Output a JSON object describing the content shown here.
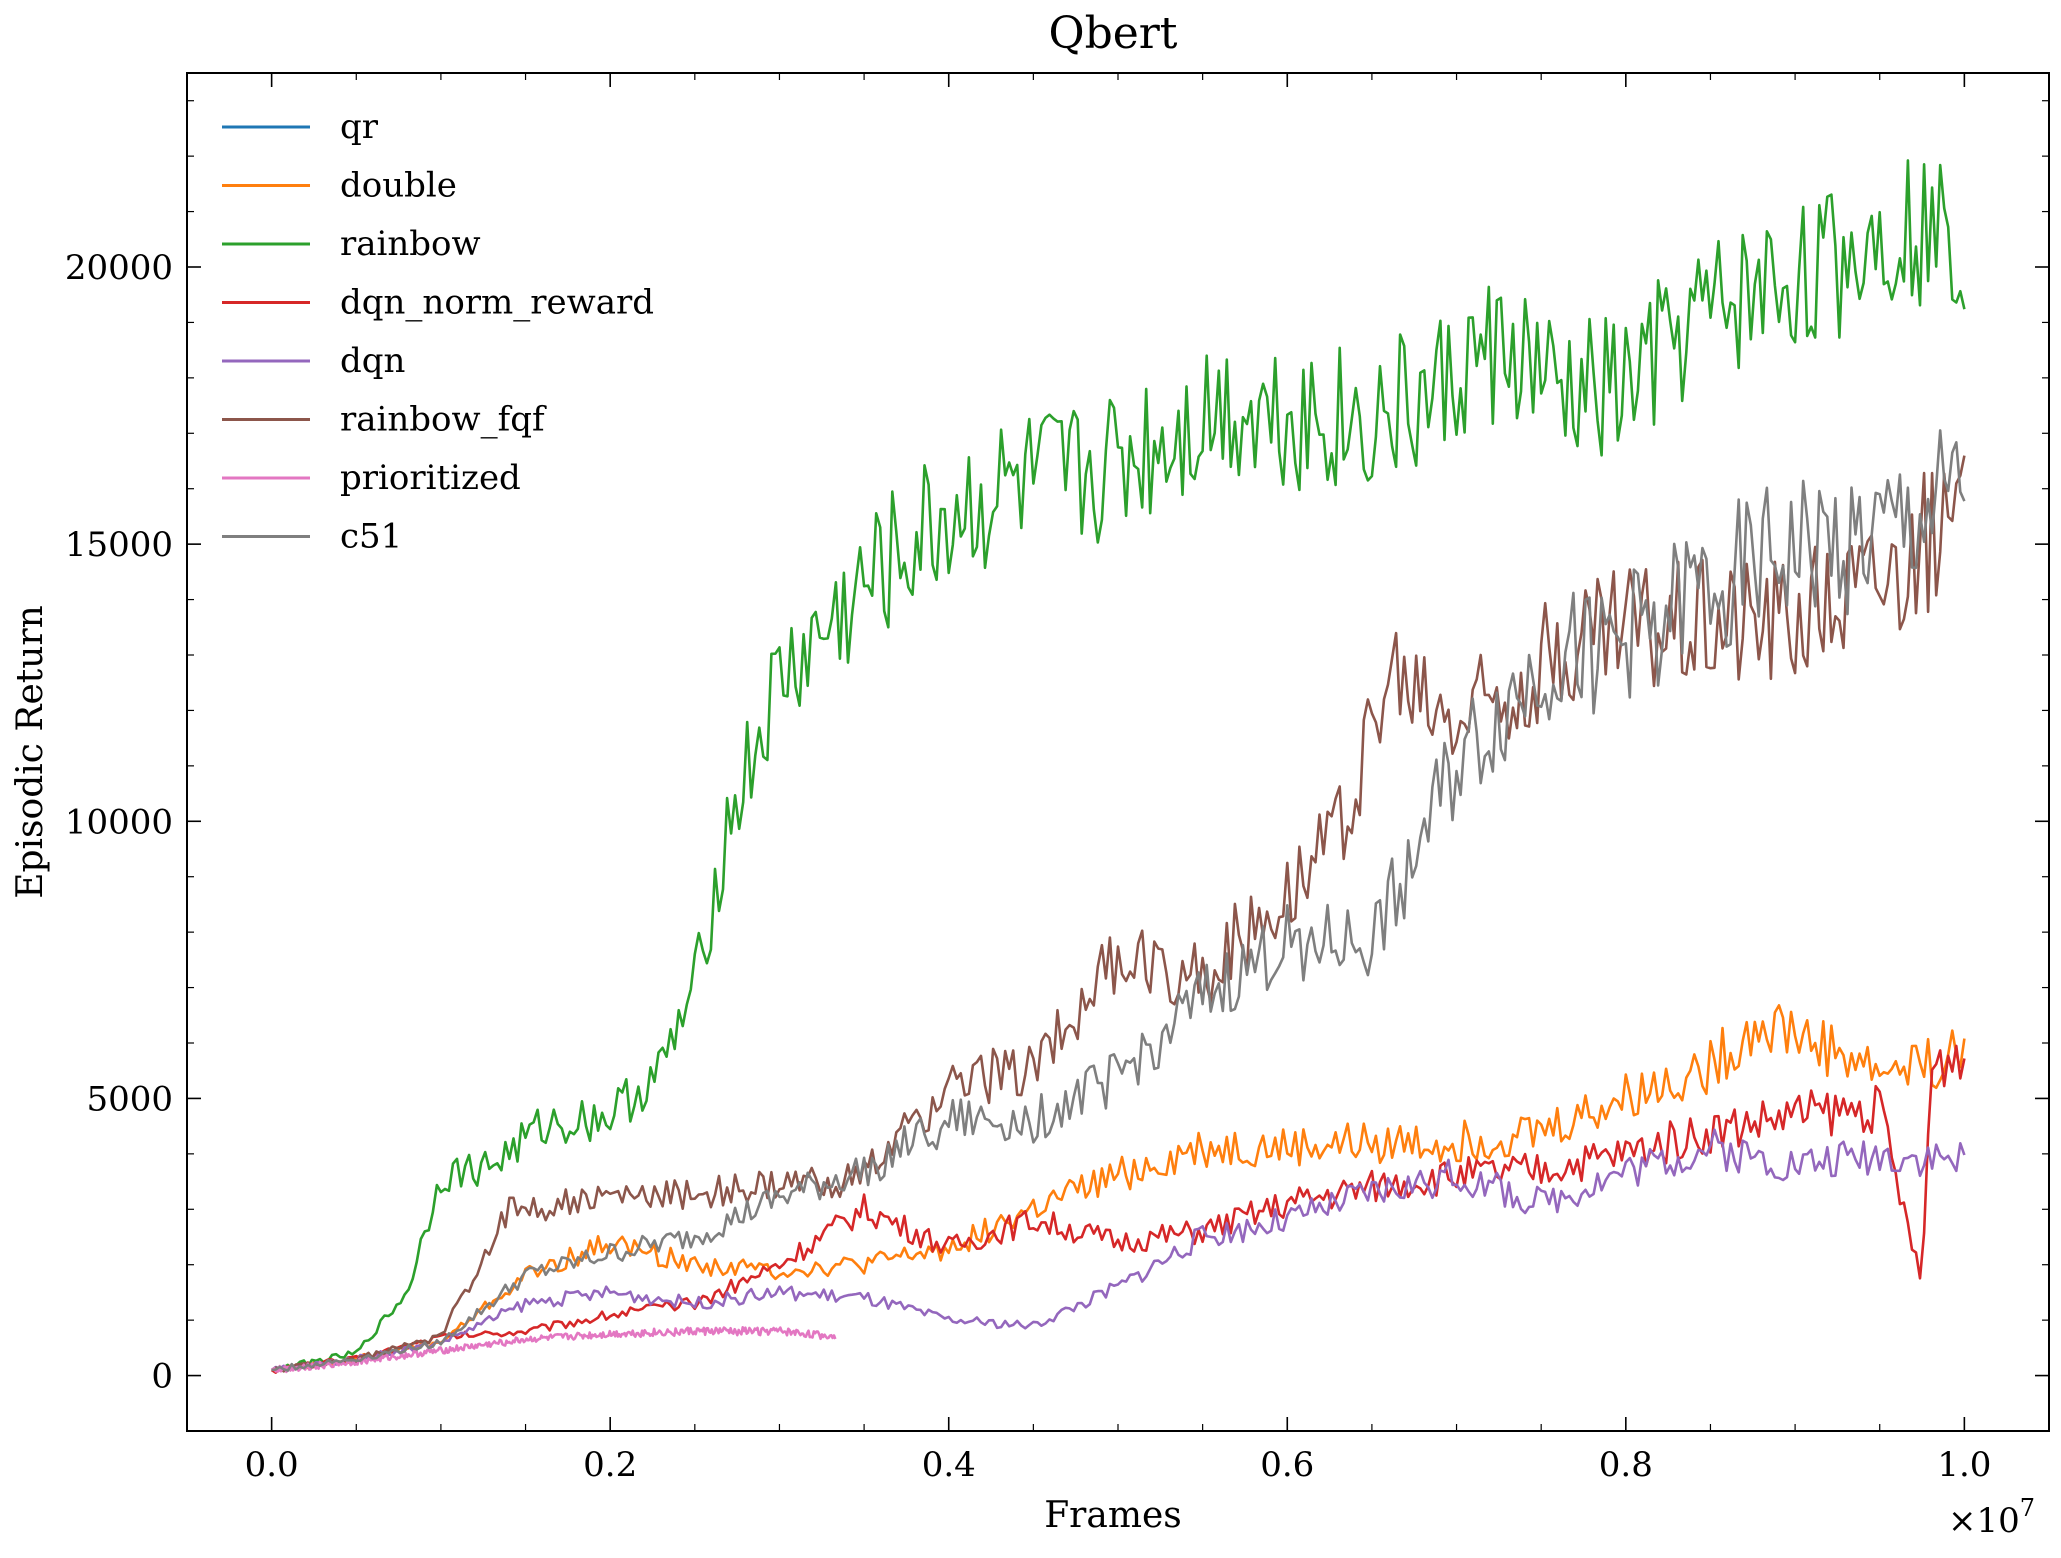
{
  "chart_data": {
    "type": "line",
    "title": "Qbert",
    "xlabel": "Frames",
    "ylabel": "Episodic Return",
    "x_scale_label": "×10",
    "x_scale_exp": "7",
    "xlim": [
      -0.05,
      1.05
    ],
    "ylim": [
      -1000,
      23500
    ],
    "xticks": [
      0.0,
      0.2,
      0.4,
      0.6,
      0.8,
      1.0
    ],
    "xtick_labels": [
      "0.0",
      "0.2",
      "0.4",
      "0.6",
      "0.8",
      "1.0"
    ],
    "yticks": [
      0,
      5000,
      10000,
      15000,
      20000
    ],
    "ytick_labels": [
      "0",
      "5000",
      "10000",
      "15000",
      "20000"
    ],
    "grid": false,
    "legend_placement": "top-left",
    "series": [
      {
        "name": "qr",
        "color": "#1f77b4",
        "x": [],
        "y": []
      },
      {
        "name": "double",
        "color": "#ff7f0e",
        "x": [
          0.0,
          0.05,
          0.1,
          0.15,
          0.2,
          0.25,
          0.3,
          0.35,
          0.4,
          0.45,
          0.5,
          0.55,
          0.6,
          0.65,
          0.7,
          0.75,
          0.8,
          0.85,
          0.88,
          0.9,
          0.95,
          1.0
        ],
        "y": [
          100,
          300,
          600,
          1800,
          2400,
          2000,
          1900,
          2000,
          2300,
          3000,
          3600,
          4100,
          4100,
          4200,
          4200,
          4400,
          5000,
          5600,
          6400,
          6200,
          5500,
          5800
        ]
      },
      {
        "name": "rainbow",
        "color": "#2ca02c",
        "x": [
          0.0,
          0.05,
          0.08,
          0.1,
          0.13,
          0.16,
          0.2,
          0.23,
          0.25,
          0.27,
          0.3,
          0.33,
          0.36,
          0.4,
          0.44,
          0.48,
          0.52,
          0.56,
          0.6,
          0.64,
          0.68,
          0.72,
          0.74,
          0.76,
          0.8,
          0.84,
          0.88,
          0.92,
          0.96,
          1.0
        ],
        "y": [
          100,
          400,
          1500,
          3600,
          3800,
          4500,
          4700,
          5500,
          7000,
          10000,
          12500,
          13500,
          14500,
          15500,
          16000,
          16200,
          16800,
          17500,
          17400,
          17200,
          17500,
          18500,
          18300,
          17600,
          17800,
          19000,
          19600,
          20000,
          20800,
          20500
        ]
      },
      {
        "name": "dqn_norm_reward",
        "color": "#d62728",
        "x": [
          0.0,
          0.05,
          0.1,
          0.15,
          0.2,
          0.25,
          0.3,
          0.35,
          0.4,
          0.45,
          0.5,
          0.55,
          0.6,
          0.65,
          0.7,
          0.75,
          0.8,
          0.85,
          0.9,
          0.95,
          0.975,
          0.98,
          1.0
        ],
        "y": [
          100,
          300,
          700,
          800,
          1100,
          1300,
          2000,
          3000,
          2300,
          2800,
          2400,
          2600,
          3100,
          3400,
          3600,
          3700,
          4000,
          4400,
          4700,
          4800,
          1600,
          5500,
          5900
        ]
      },
      {
        "name": "dqn",
        "color": "#9467bd",
        "x": [
          0.0,
          0.05,
          0.1,
          0.15,
          0.2,
          0.25,
          0.3,
          0.35,
          0.4,
          0.45,
          0.5,
          0.55,
          0.6,
          0.65,
          0.7,
          0.75,
          0.8,
          0.85,
          0.9,
          0.95,
          1.0
        ],
        "y": [
          100,
          300,
          600,
          1300,
          1500,
          1300,
          1500,
          1400,
          1000,
          900,
          1600,
          2500,
          2800,
          3300,
          3600,
          3100,
          3700,
          4100,
          3800,
          4000,
          3900
        ]
      },
      {
        "name": "rainbow_fqf",
        "color": "#8c564b",
        "x": [
          0.0,
          0.05,
          0.1,
          0.14,
          0.2,
          0.25,
          0.3,
          0.35,
          0.4,
          0.45,
          0.5,
          0.55,
          0.6,
          0.63,
          0.66,
          0.7,
          0.75,
          0.8,
          0.85,
          0.9,
          0.95,
          1.0
        ],
        "y": [
          100,
          300,
          700,
          3000,
          3200,
          3300,
          3400,
          3600,
          5200,
          5600,
          7500,
          7200,
          8800,
          9800,
          12500,
          11800,
          12800,
          13600,
          13700,
          13800,
          14500,
          15500
        ]
      },
      {
        "name": "prioritized",
        "color": "#e377c2",
        "x": [
          0.0,
          0.05,
          0.1,
          0.15,
          0.2,
          0.25,
          0.3,
          0.333
        ],
        "y": [
          100,
          250,
          450,
          650,
          750,
          800,
          800,
          700
        ]
      },
      {
        "name": "c51",
        "color": "#7f7f7f",
        "x": [
          0.0,
          0.05,
          0.1,
          0.15,
          0.2,
          0.25,
          0.3,
          0.35,
          0.4,
          0.45,
          0.5,
          0.55,
          0.6,
          0.65,
          0.7,
          0.75,
          0.8,
          0.85,
          0.9,
          0.95,
          1.0
        ],
        "y": [
          100,
          300,
          600,
          1800,
          2200,
          2500,
          3200,
          3700,
          4600,
          4600,
          5400,
          6800,
          7800,
          7800,
          11000,
          12800,
          13300,
          14300,
          14900,
          15100,
          15900
        ]
      }
    ]
  }
}
